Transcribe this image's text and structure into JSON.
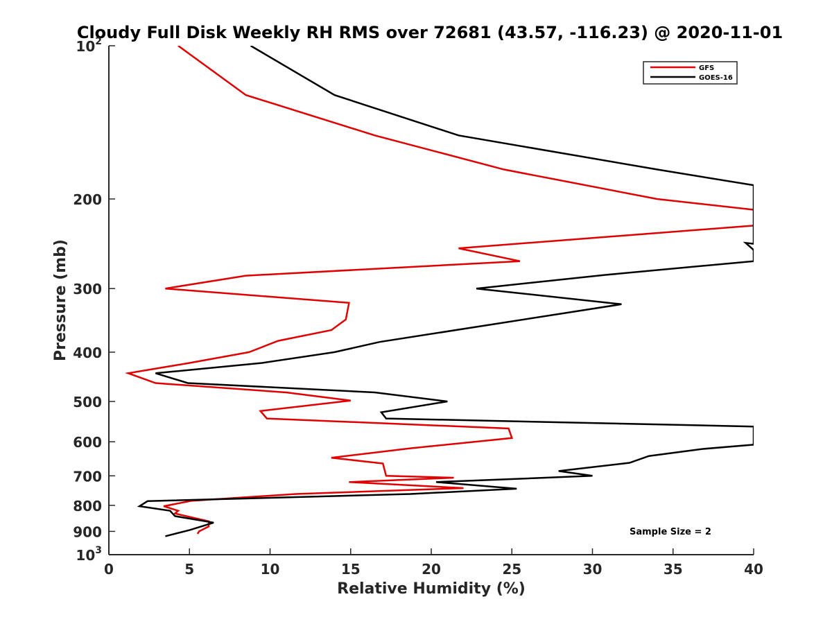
{
  "chart_data": {
    "type": "line",
    "title": "Cloudy Full Disk Weekly RH RMS over 72681 (43.57, -116.23) @ 2020-11-01",
    "xlabel": "Relative Humidity (%)",
    "ylabel": "Pressure (mb)",
    "xlim": [
      0,
      40
    ],
    "ylim": [
      100,
      1000
    ],
    "y_scale": "log",
    "y_reversed": true,
    "grid": false,
    "legend_position": "top-right",
    "x_ticks": [
      0,
      5,
      10,
      15,
      20,
      25,
      30,
      35,
      40
    ],
    "x_tick_labels": [
      "0",
      "5",
      "10",
      "15",
      "20",
      "25",
      "30",
      "35",
      "40"
    ],
    "y_ticks": [
      100,
      200,
      300,
      400,
      500,
      600,
      700,
      800,
      900,
      1000
    ],
    "y_tick_labels": [
      {
        "base": "10",
        "exp": "2"
      },
      {
        "base": "200",
        "exp": ""
      },
      {
        "base": "300",
        "exp": ""
      },
      {
        "base": "400",
        "exp": ""
      },
      {
        "base": "500",
        "exp": ""
      },
      {
        "base": "600",
        "exp": ""
      },
      {
        "base": "700",
        "exp": ""
      },
      {
        "base": "800",
        "exp": ""
      },
      {
        "base": "900",
        "exp": ""
      },
      {
        "base": "10",
        "exp": "3"
      }
    ],
    "annotation": "Sample Size = 2",
    "series": [
      {
        "name": "GFS",
        "color": "#e00000",
        "points": [
          [
            4.3,
            100
          ],
          [
            8.5,
            125
          ],
          [
            16.5,
            150
          ],
          [
            24.5,
            175
          ],
          [
            34.0,
            200
          ],
          [
            40.0,
            210
          ],
          [
            40.5,
            225
          ],
          [
            21.7,
            250
          ],
          [
            25.5,
            265
          ],
          [
            8.5,
            283
          ],
          [
            3.5,
            300
          ],
          [
            14.9,
            320
          ],
          [
            14.7,
            345
          ],
          [
            13.8,
            362
          ],
          [
            10.5,
            380
          ],
          [
            8.7,
            400
          ],
          [
            5.0,
            420
          ],
          [
            1.2,
            440
          ],
          [
            2.9,
            460
          ],
          [
            11.0,
            480
          ],
          [
            15.0,
            498
          ],
          [
            9.4,
            522
          ],
          [
            9.8,
            540
          ],
          [
            24.8,
            565
          ],
          [
            25.0,
            590
          ],
          [
            18.7,
            618
          ],
          [
            13.8,
            645
          ],
          [
            17.0,
            662
          ],
          [
            17.2,
            700
          ],
          [
            21.4,
            706
          ],
          [
            14.9,
            720
          ],
          [
            22.0,
            740
          ],
          [
            11.6,
            760
          ],
          [
            5.1,
            784
          ],
          [
            3.4,
            803
          ],
          [
            4.3,
            820
          ],
          [
            4.1,
            830
          ],
          [
            6.2,
            860
          ],
          [
            6.2,
            880
          ],
          [
            5.6,
            900
          ],
          [
            5.5,
            910
          ]
        ]
      },
      {
        "name": "GOES-16",
        "color": "#000000",
        "points": [
          [
            8.8,
            100
          ],
          [
            14.0,
            125
          ],
          [
            21.7,
            150
          ],
          [
            34.0,
            175
          ],
          [
            40.0,
            188
          ],
          [
            40.0,
            245
          ],
          [
            39.5,
            244
          ],
          [
            40.0,
            252
          ],
          [
            40.0,
            265
          ],
          [
            30.8,
            282
          ],
          [
            22.8,
            300
          ],
          [
            31.8,
            322
          ],
          [
            16.8,
            382
          ],
          [
            14.0,
            400
          ],
          [
            9.5,
            420
          ],
          [
            2.9,
            440
          ],
          [
            4.9,
            460
          ],
          [
            16.5,
            480
          ],
          [
            21.0,
            500
          ],
          [
            16.9,
            525
          ],
          [
            17.2,
            540
          ],
          [
            40.0,
            560
          ],
          [
            40.0,
            608
          ],
          [
            36.8,
            620
          ],
          [
            33.5,
            640
          ],
          [
            32.3,
            660
          ],
          [
            27.9,
            685
          ],
          [
            30.0,
            700
          ],
          [
            20.3,
            720
          ],
          [
            25.3,
            742
          ],
          [
            18.7,
            760
          ],
          [
            2.4,
            785
          ],
          [
            1.9,
            803
          ],
          [
            3.8,
            820
          ],
          [
            4.1,
            840
          ],
          [
            6.5,
            865
          ],
          [
            5.0,
            895
          ],
          [
            3.5,
            920
          ]
        ]
      }
    ]
  }
}
